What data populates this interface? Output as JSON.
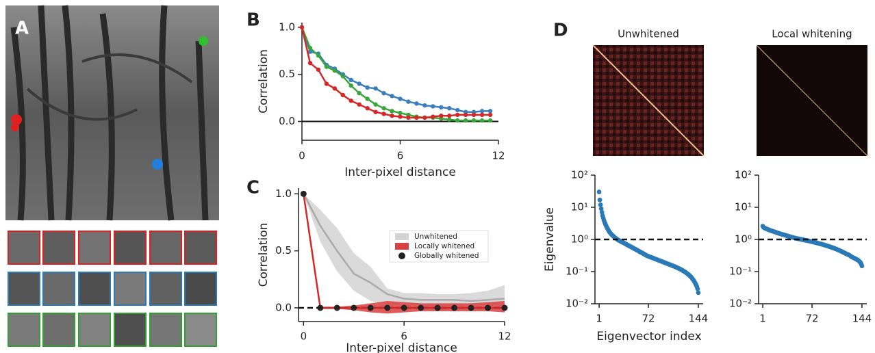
{
  "panel_labels": [
    "A",
    "B",
    "C",
    "D"
  ],
  "heatmaps": {
    "titles": [
      "Unwhitened",
      "Local whitening"
    ]
  },
  "chart_data": [
    {
      "type": "line",
      "xlabel": "Inter-pixel distance",
      "ylabel": "Correlation",
      "x": [
        0,
        0.5,
        1,
        1.5,
        2,
        2.5,
        3,
        3.5,
        4,
        4.5,
        5,
        5.5,
        6,
        6.5,
        7,
        7.5,
        8,
        8.5,
        9,
        9.5,
        10,
        10.5,
        11,
        11.5
      ],
      "xlim": [
        0,
        12
      ],
      "xticks": [
        0,
        6,
        12
      ],
      "ylim": [
        -0.2,
        1.05
      ],
      "yticks": [
        {
          "value": 0,
          "label": "0.0"
        },
        0.5,
        {
          "value": 1,
          "label": "1.0"
        }
      ],
      "hline": 0,
      "hline_style": "solid",
      "series": [
        {
          "color": "#3a7ebf",
          "kind": "line",
          "values": [
            1.0,
            0.74,
            0.72,
            0.6,
            0.56,
            0.5,
            0.44,
            0.4,
            0.36,
            0.35,
            0.3,
            0.27,
            0.24,
            0.21,
            0.19,
            0.17,
            0.16,
            0.15,
            0.14,
            0.12,
            0.1,
            0.1,
            0.11,
            0.11
          ]
        },
        {
          "color": "#3aa53a",
          "kind": "line",
          "values": [
            1.0,
            0.78,
            0.7,
            0.58,
            0.54,
            0.48,
            0.38,
            0.3,
            0.24,
            0.18,
            0.14,
            0.11,
            0.09,
            0.07,
            0.05,
            0.04,
            0.04,
            0.03,
            0.02,
            0.01,
            0.01,
            0.01,
            0.01,
            0.01
          ]
        },
        {
          "color": "#d62728",
          "kind": "line",
          "values": [
            1.0,
            0.62,
            0.55,
            0.4,
            0.35,
            0.28,
            0.22,
            0.18,
            0.14,
            0.1,
            0.08,
            0.06,
            0.05,
            0.04,
            0.04,
            0.04,
            0.05,
            0.06,
            0.06,
            0.07,
            0.07,
            0.07,
            0.07,
            0.07
          ]
        }
      ]
    },
    {
      "type": "line",
      "xlabel": "Inter-pixel distance",
      "ylabel": "Correlation",
      "x": [
        0,
        1,
        2,
        3,
        4,
        5,
        6,
        7,
        8,
        9,
        10,
        11,
        12
      ],
      "xlim": [
        -0.3,
        12
      ],
      "xticks": [
        0,
        6,
        12
      ],
      "ylim": [
        -0.12,
        1.05
      ],
      "yticks": [
        {
          "value": 0,
          "label": "0.0"
        },
        0.5,
        {
          "value": 1,
          "label": "1.0"
        }
      ],
      "hline": 0,
      "hline_style": "dashed",
      "legend": "right",
      "series": [
        {
          "name": "Unwhitened",
          "kind": "line",
          "color": "#aaaaaa",
          "band_color": "#d3d3d3",
          "values": [
            1,
            0.72,
            0.5,
            0.3,
            0.22,
            0.12,
            0.08,
            0.07,
            0.07,
            0.07,
            0.06,
            0.07,
            0.08
          ],
          "lower": [
            1,
            0.58,
            0.32,
            0.15,
            0.06,
            0.03,
            0.02,
            0.02,
            0.02,
            0.02,
            0.02,
            0.02,
            0.02
          ],
          "upper": [
            1,
            0.86,
            0.7,
            0.48,
            0.36,
            0.17,
            0.13,
            0.13,
            0.12,
            0.12,
            0.13,
            0.15,
            0.2
          ]
        },
        {
          "name": "Locally whitened",
          "kind": "line",
          "color": "#d62728",
          "band_color": "#d94040",
          "values": [
            1,
            0,
            0,
            0,
            0,
            0,
            0,
            0,
            0,
            0,
            0,
            0,
            0
          ],
          "lower": [
            1,
            -0.01,
            -0.01,
            -0.02,
            -0.04,
            -0.05,
            -0.04,
            -0.03,
            -0.03,
            -0.03,
            -0.03,
            -0.03,
            -0.04
          ],
          "upper": [
            1,
            0.01,
            0.01,
            0.02,
            0.04,
            0.06,
            0.05,
            0.04,
            0.04,
            0.04,
            0.04,
            0.05,
            0.06
          ]
        },
        {
          "name": "Globally whitened",
          "kind": "points",
          "color": "#222222",
          "values": [
            1,
            0,
            0,
            0,
            0,
            0,
            0,
            0,
            0,
            0,
            0,
            0,
            0
          ]
        }
      ]
    },
    {
      "type": "scatter",
      "xlabel": "Eigenvector index",
      "ylabel": "Eigenvalue",
      "log_y": true,
      "xlim": [
        -5,
        151
      ],
      "xticks": [
        1,
        72,
        144
      ],
      "ylim": [
        0.01,
        100
      ],
      "yticks": [
        {
          "value": 0.01,
          "label": "10⁻²"
        },
        {
          "value": 0.1,
          "label": "10⁻¹"
        },
        {
          "value": 1,
          "label": "10⁰"
        },
        {
          "value": 10,
          "label": "10¹"
        },
        {
          "value": 100,
          "label": "10²"
        }
      ],
      "hline": 1,
      "hline_style": "dashed",
      "x": [
        1,
        2,
        3,
        4,
        5,
        6,
        7,
        8,
        9,
        10,
        11,
        12,
        13,
        14,
        15,
        16,
        17,
        18,
        19,
        20,
        21,
        22,
        23,
        24,
        25,
        26,
        27,
        28,
        29,
        30,
        31,
        32,
        33,
        34,
        35,
        36,
        37,
        38,
        39,
        40,
        41,
        42,
        43,
        44,
        45,
        46,
        47,
        48,
        49,
        50,
        51,
        52,
        53,
        54,
        55,
        56,
        57,
        58,
        59,
        60,
        61,
        62,
        63,
        64,
        65,
        66,
        67,
        68,
        69,
        70,
        71,
        72,
        73,
        74,
        75,
        76,
        77,
        78,
        79,
        80,
        81,
        82,
        83,
        84,
        85,
        86,
        87,
        88,
        89,
        90,
        91,
        92,
        93,
        94,
        95,
        96,
        97,
        98,
        99,
        100,
        101,
        102,
        103,
        104,
        105,
        106,
        107,
        108,
        109,
        110,
        111,
        112,
        113,
        114,
        115,
        116,
        117,
        118,
        119,
        120,
        121,
        122,
        123,
        124,
        125,
        126,
        127,
        128,
        129,
        130,
        131,
        132,
        133,
        134,
        135,
        136,
        137,
        138,
        139,
        140,
        141,
        142,
        143,
        144
      ],
      "series": [
        {
          "color": "#2a7ab8",
          "values": [
            30,
            17,
            12,
            9,
            7,
            5.5,
            4.6,
            3.9,
            3.4,
            3.0,
            2.7,
            2.4,
            2.2,
            2.0,
            1.85,
            1.7,
            1.6,
            1.5,
            1.42,
            1.35,
            1.29,
            1.23,
            1.18,
            1.13,
            1.09,
            1.05,
            1.01,
            0.98,
            0.95,
            0.92,
            0.9,
            0.87,
            0.85,
            0.83,
            0.81,
            0.79,
            0.77,
            0.75,
            0.73,
            0.71,
            0.69,
            0.67,
            0.65,
            0.64,
            0.62,
            0.6,
            0.59,
            0.57,
            0.56,
            0.54,
            0.53,
            0.51,
            0.5,
            0.49,
            0.47,
            0.46,
            0.45,
            0.44,
            0.42,
            0.41,
            0.4,
            0.39,
            0.38,
            0.37,
            0.36,
            0.35,
            0.34,
            0.33,
            0.32,
            0.31,
            0.305,
            0.3,
            0.294,
            0.288,
            0.283,
            0.277,
            0.272,
            0.267,
            0.262,
            0.257,
            0.252,
            0.247,
            0.242,
            0.238,
            0.233,
            0.229,
            0.224,
            0.22,
            0.216,
            0.212,
            0.208,
            0.204,
            0.2,
            0.196,
            0.192,
            0.188,
            0.185,
            0.181,
            0.178,
            0.174,
            0.171,
            0.167,
            0.164,
            0.161,
            0.158,
            0.155,
            0.152,
            0.149,
            0.146,
            0.143,
            0.14,
            0.137,
            0.134,
            0.131,
            0.128,
            0.125,
            0.122,
            0.119,
            0.116,
            0.113,
            0.11,
            0.106,
            0.103,
            0.1,
            0.097,
            0.094,
            0.09,
            0.087,
            0.084,
            0.08,
            0.077,
            0.073,
            0.07,
            0.066,
            0.062,
            0.058,
            0.054,
            0.05,
            0.046,
            0.042,
            0.038,
            0.034,
            0.029,
            0.022
          ]
        }
      ]
    },
    {
      "type": "scatter",
      "log_y": true,
      "xlim": [
        -5,
        151
      ],
      "xticks": [
        1,
        72,
        144
      ],
      "ylim": [
        0.01,
        100
      ],
      "yticks": [
        {
          "value": 0.01,
          "label": "10⁻²"
        },
        {
          "value": 0.1,
          "label": "10⁻¹"
        },
        {
          "value": 1,
          "label": "10⁰"
        },
        {
          "value": 10,
          "label": "10¹"
        },
        {
          "value": 100,
          "label": "10²"
        }
      ],
      "hline": 1,
      "hline_style": "dashed",
      "x": [
        1,
        2,
        3,
        4,
        5,
        6,
        7,
        8,
        9,
        10,
        11,
        12,
        13,
        14,
        15,
        16,
        17,
        18,
        19,
        20,
        21,
        22,
        23,
        24,
        25,
        26,
        27,
        28,
        29,
        30,
        31,
        32,
        33,
        34,
        35,
        36,
        37,
        38,
        39,
        40,
        41,
        42,
        43,
        44,
        45,
        46,
        47,
        48,
        49,
        50,
        51,
        52,
        53,
        54,
        55,
        56,
        57,
        58,
        59,
        60,
        61,
        62,
        63,
        64,
        65,
        66,
        67,
        68,
        69,
        70,
        71,
        72,
        73,
        74,
        75,
        76,
        77,
        78,
        79,
        80,
        81,
        82,
        83,
        84,
        85,
        86,
        87,
        88,
        89,
        90,
        91,
        92,
        93,
        94,
        95,
        96,
        97,
        98,
        99,
        100,
        101,
        102,
        103,
        104,
        105,
        106,
        107,
        108,
        109,
        110,
        111,
        112,
        113,
        114,
        115,
        116,
        117,
        118,
        119,
        120,
        121,
        122,
        123,
        124,
        125,
        126,
        127,
        128,
        129,
        130,
        131,
        132,
        133,
        134,
        135,
        136,
        137,
        138,
        139,
        140,
        141,
        142,
        143,
        144
      ],
      "series": [
        {
          "color": "#2a7ab8",
          "values": [
            2.6,
            2.4,
            2.3,
            2.25,
            2.2,
            2.15,
            2.1,
            2.06,
            2.02,
            1.98,
            1.94,
            1.9,
            1.87,
            1.84,
            1.81,
            1.78,
            1.75,
            1.72,
            1.69,
            1.66,
            1.63,
            1.6,
            1.58,
            1.55,
            1.53,
            1.5,
            1.48,
            1.46,
            1.44,
            1.42,
            1.4,
            1.38,
            1.36,
            1.34,
            1.32,
            1.3,
            1.28,
            1.26,
            1.24,
            1.22,
            1.21,
            1.19,
            1.17,
            1.16,
            1.14,
            1.13,
            1.11,
            1.1,
            1.08,
            1.07,
            1.06,
            1.05,
            1.04,
            1.03,
            1.02,
            1.01,
            1.0,
            0.99,
            0.98,
            0.97,
            0.96,
            0.95,
            0.94,
            0.93,
            0.92,
            0.91,
            0.9,
            0.89,
            0.88,
            0.87,
            0.86,
            0.85,
            0.84,
            0.83,
            0.82,
            0.81,
            0.8,
            0.79,
            0.78,
            0.77,
            0.76,
            0.75,
            0.74,
            0.73,
            0.72,
            0.71,
            0.7,
            0.69,
            0.68,
            0.67,
            0.66,
            0.65,
            0.64,
            0.63,
            0.62,
            0.61,
            0.6,
            0.59,
            0.58,
            0.57,
            0.56,
            0.55,
            0.54,
            0.53,
            0.52,
            0.51,
            0.5,
            0.49,
            0.48,
            0.47,
            0.46,
            0.45,
            0.44,
            0.43,
            0.42,
            0.41,
            0.4,
            0.39,
            0.38,
            0.37,
            0.36,
            0.35,
            0.345,
            0.34,
            0.33,
            0.32,
            0.31,
            0.3,
            0.29,
            0.28,
            0.275,
            0.27,
            0.26,
            0.255,
            0.25,
            0.24,
            0.235,
            0.23,
            0.22,
            0.21,
            0.2,
            0.19,
            0.17,
            0.15
          ]
        }
      ]
    }
  ]
}
